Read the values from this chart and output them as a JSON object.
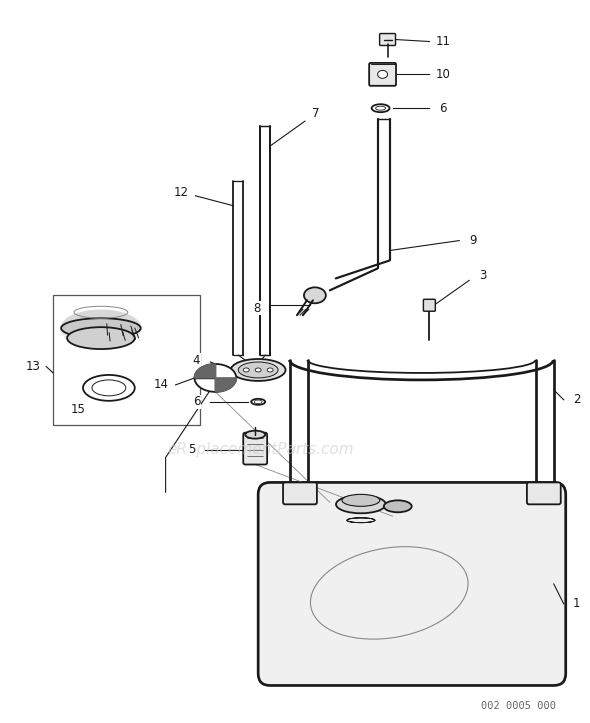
{
  "bg_color": "#ffffff",
  "line_color": "#1a1a1a",
  "label_color": "#1a1a1a",
  "watermark_color": "#cccccc",
  "watermark_text": "eReplacementParts.com",
  "part_code": "002 0005 000",
  "figsize": [
    5.9,
    7.23
  ],
  "dpi": 100
}
